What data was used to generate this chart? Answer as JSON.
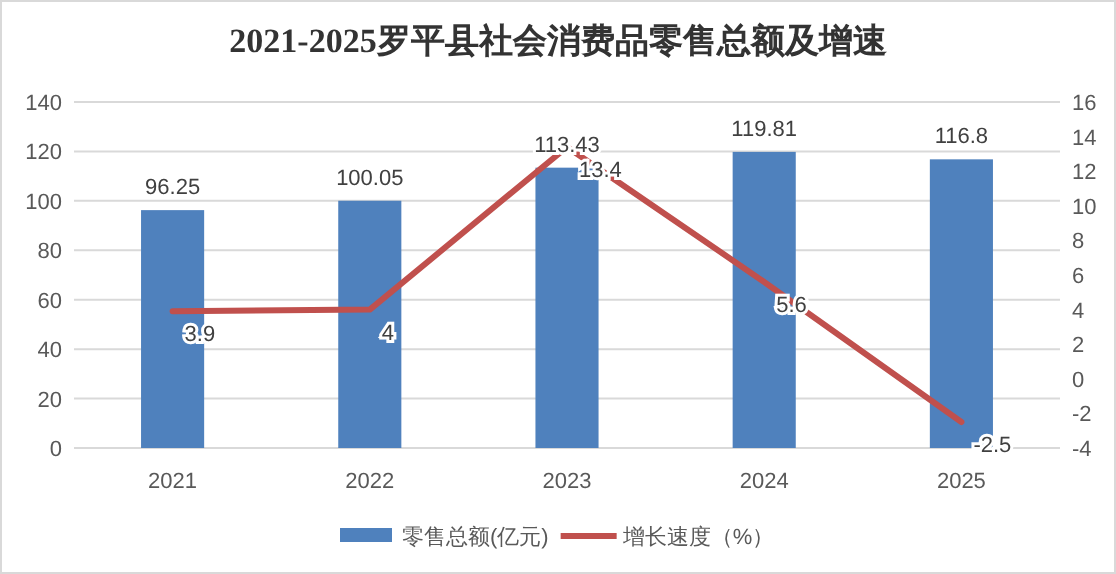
{
  "chart_data": {
    "type": "bar",
    "title": "2021-2025罗平县社会消费品零售总额及增速",
    "categories": [
      "2021",
      "2022",
      "2023",
      "2024",
      "2025"
    ],
    "series": [
      {
        "name": "零售总额(亿元)",
        "color": "#4f81bd",
        "values": [
          96.25,
          100.05,
          113.43,
          119.81,
          116.8
        ]
      },
      {
        "name": "增长速度（%）",
        "type": "line",
        "axis": "y2",
        "color": "#c0504d",
        "values": [
          3.9,
          4,
          13.4,
          5.6,
          -2.5
        ]
      }
    ],
    "ylim": [
      0,
      140
    ],
    "yticks": [
      0,
      20,
      40,
      60,
      80,
      100,
      120,
      140
    ],
    "y2lim": [
      -4,
      16
    ],
    "y2ticks": [
      -4,
      -2,
      0,
      2,
      4,
      6,
      8,
      10,
      12,
      14,
      16
    ],
    "data_labels": true,
    "grid": "y",
    "legend": "bottom",
    "marker": "none",
    "line_style": "solid"
  }
}
